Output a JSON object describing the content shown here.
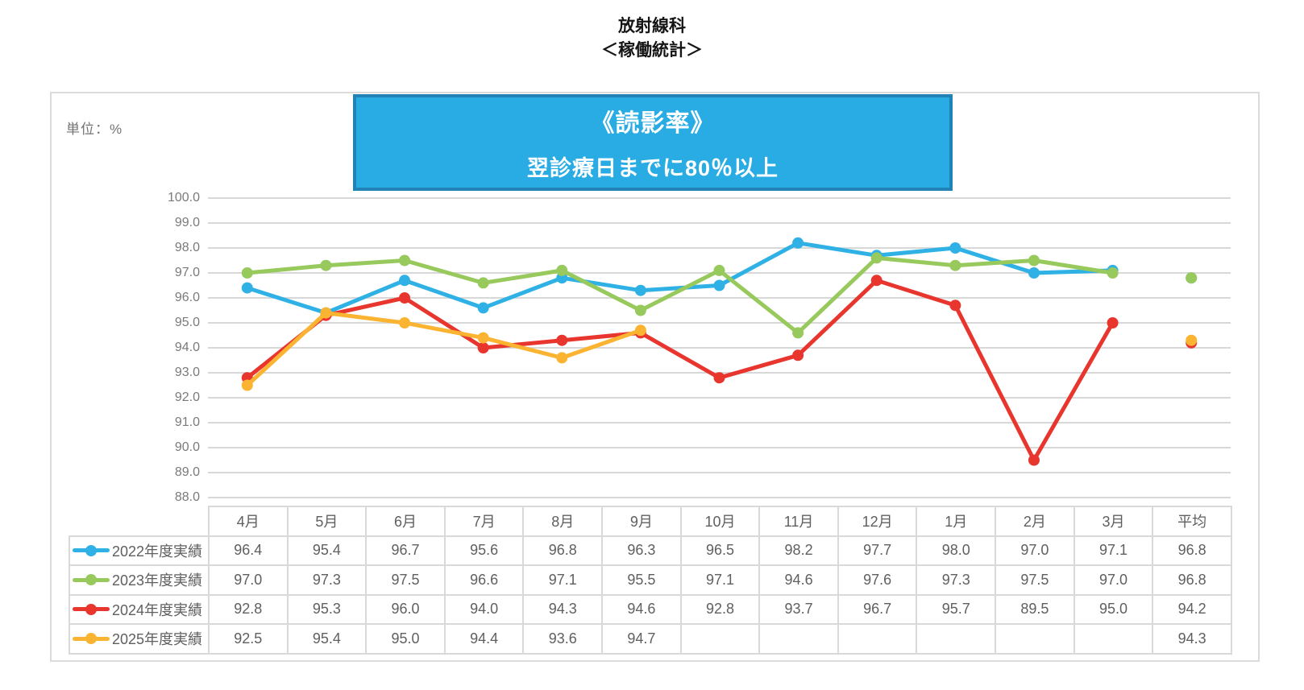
{
  "header": {
    "title_line1": "放射線科",
    "title_line2": "＜稼働統計＞"
  },
  "panel": {
    "unit_label": "単位：%"
  },
  "banner": {
    "title": "《読影率》",
    "subtitle": "翌診療日までに80％以上",
    "bg_color": "#29ACE3",
    "border_color": "#2182B5",
    "text_color": "#FFFFFF"
  },
  "chart_data": {
    "type": "line",
    "title": "《読影率》 翌診療日までに80％以上",
    "ylabel": "単位：%",
    "categories": [
      "4月",
      "5月",
      "6月",
      "7月",
      "8月",
      "9月",
      "10月",
      "11月",
      "12月",
      "1月",
      "2月",
      "3月",
      "平均"
    ],
    "ylim": [
      88.0,
      100.0
    ],
    "ytick_step": 1.0,
    "grid": true,
    "legend_position": "table-left",
    "average_column_style": "markers-only-no-line",
    "series": [
      {
        "name": "2022年度実績",
        "color": "#2FB1E6",
        "values": [
          96.4,
          95.4,
          96.7,
          95.6,
          96.8,
          96.3,
          96.5,
          98.2,
          97.7,
          98.0,
          97.0,
          97.1
        ],
        "average": 96.8
      },
      {
        "name": "2023年度実績",
        "color": "#97C95C",
        "values": [
          97.0,
          97.3,
          97.5,
          96.6,
          97.1,
          95.5,
          97.1,
          94.6,
          97.6,
          97.3,
          97.5,
          97.0
        ],
        "average": 96.8
      },
      {
        "name": "2024年度実績",
        "color": "#E8352D",
        "values": [
          92.8,
          95.3,
          96.0,
          94.0,
          94.3,
          94.6,
          92.8,
          93.7,
          96.7,
          95.7,
          89.5,
          95.0
        ],
        "average": 94.2
      },
      {
        "name": "2025年度実績",
        "color": "#FBB431",
        "values": [
          92.5,
          95.4,
          95.0,
          94.4,
          93.6,
          94.7,
          null,
          null,
          null,
          null,
          null,
          null
        ],
        "average": 94.3
      }
    ]
  },
  "colors": {
    "gridline": "#D8D8D8",
    "frame_border": "#DBDBDB",
    "table_border": "#D9D9D9",
    "axis_text": "#7A7A7A",
    "table_text": "#5F5F5F"
  }
}
